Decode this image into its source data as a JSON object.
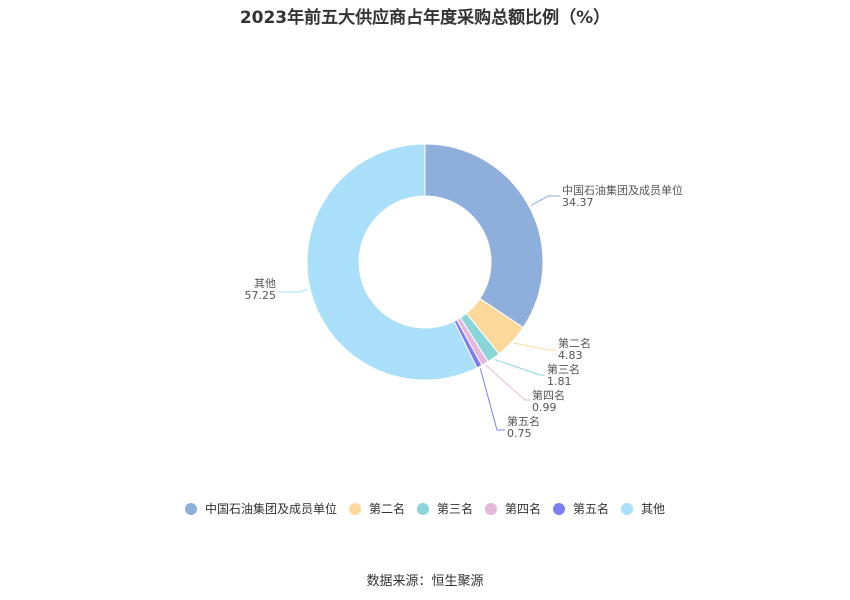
{
  "chart_data": {
    "type": "pie",
    "title": "2023年前五大供应商占年度采购总额比例（%）",
    "categories": [
      "中国石油集团及成员单位",
      "第二名",
      "第三名",
      "第四名",
      "第五名",
      "其他"
    ],
    "values": [
      34.37,
      4.83,
      1.81,
      0.99,
      0.75,
      57.25
    ],
    "colors": [
      "#8eaedb",
      "#fcd99a",
      "#8ad5da",
      "#e5b7dd",
      "#7d7ef3",
      "#aadff9"
    ],
    "legend_position": "bottom"
  },
  "source": "数据来源：恒生聚源"
}
